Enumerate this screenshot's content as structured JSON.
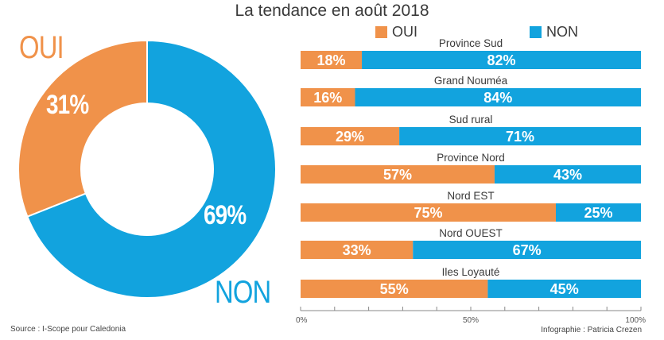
{
  "title": "La tendance en août 2018",
  "colors": {
    "oui": "#f0924a",
    "non": "#12a3de",
    "axis": "#888888"
  },
  "legend": {
    "oui": "OUI",
    "non": "NON"
  },
  "source": "Source : I-Scope pour Caledonia",
  "credit": "Infographie : Patricia Crezen",
  "chart_data": [
    {
      "type": "pie",
      "variant": "donut",
      "title": "La tendance en août 2018",
      "labels": [
        "OUI",
        "NON"
      ],
      "values": [
        31,
        69
      ],
      "value_labels": [
        "31%",
        "69%"
      ],
      "colors": [
        "#f0924a",
        "#12a3de"
      ],
      "start": "top, clockwise: NON first"
    },
    {
      "type": "bar",
      "orientation": "horizontal",
      "stacked": true,
      "legend_position": "top",
      "categories": [
        "Province Sud",
        "Grand Nouméa",
        "Sud rural",
        "Province Nord",
        "Nord EST",
        "Nord OUEST",
        "Iles Loyauté"
      ],
      "series": [
        {
          "name": "OUI",
          "color": "#f0924a",
          "values": [
            18,
            16,
            29,
            57,
            75,
            33,
            55
          ]
        },
        {
          "name": "NON",
          "color": "#12a3de",
          "values": [
            82,
            84,
            71,
            43,
            25,
            67,
            45
          ]
        }
      ],
      "xlim": [
        0,
        100
      ],
      "x_ticks": [
        0,
        10,
        20,
        30,
        40,
        50,
        60,
        70,
        80,
        90,
        100
      ],
      "x_tick_labels": {
        "0": "0%",
        "50": "50%",
        "100": "100%"
      },
      "xlabel": "",
      "ylabel": "",
      "grid": false
    }
  ]
}
